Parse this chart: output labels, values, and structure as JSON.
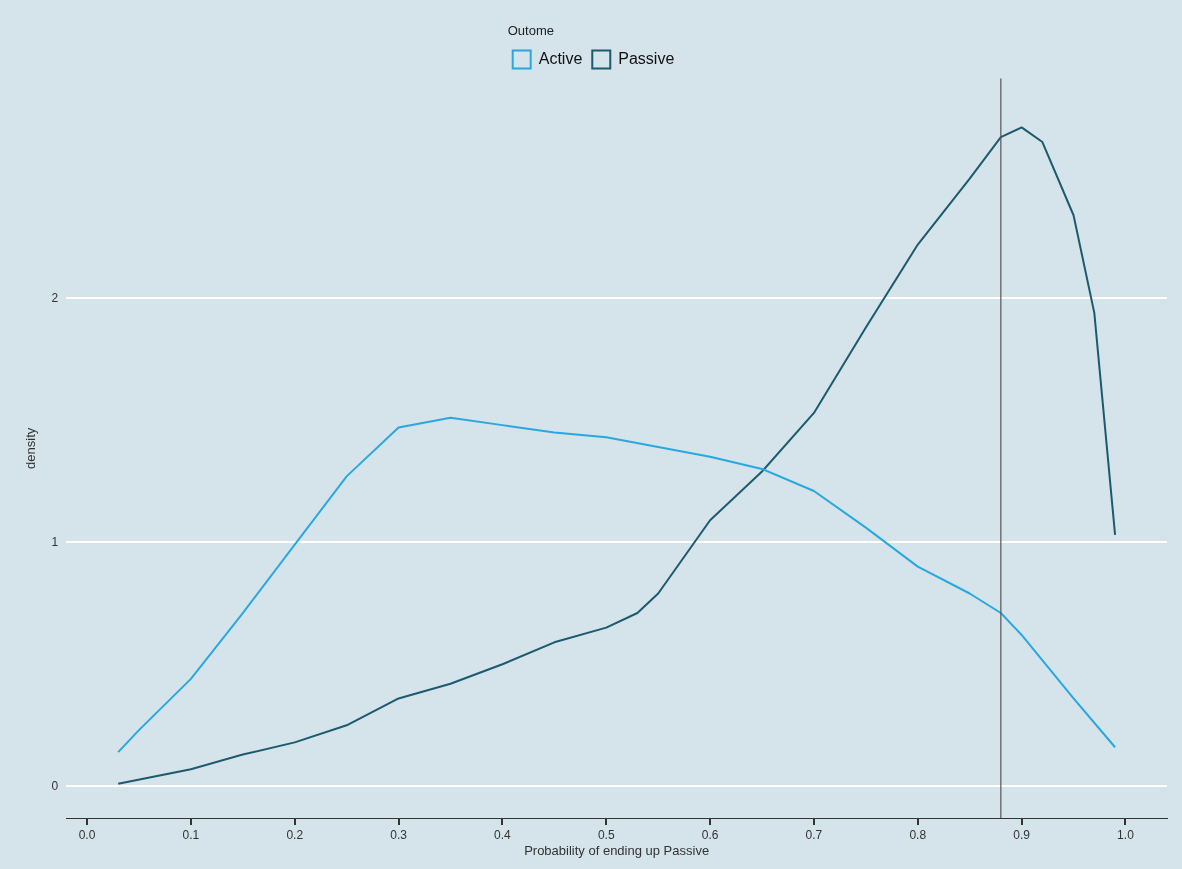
{
  "chart_data": {
    "type": "line",
    "xlabel": "Probability of ending up Passive",
    "ylabel": "density",
    "legend_title": "Outome",
    "legend": "top",
    "grid": "y",
    "marker": "none",
    "line_style": "solid",
    "xlim": [
      -0.02,
      1.04
    ],
    "ylim": [
      -0.13,
      2.9
    ],
    "xticks": [
      {
        "value": 0,
        "label": "0.0"
      },
      {
        "value": 0.1,
        "label": "0.1"
      },
      {
        "value": 0.2,
        "label": "0.2"
      },
      {
        "value": 0.3,
        "label": "0.3"
      },
      {
        "value": 0.4,
        "label": "0.4"
      },
      {
        "value": 0.5,
        "label": "0.5"
      },
      {
        "value": 0.6,
        "label": "0.6"
      },
      {
        "value": 0.7,
        "label": "0.7"
      },
      {
        "value": 0.8,
        "label": "0.8"
      },
      {
        "value": 0.9,
        "label": "0.9"
      },
      {
        "value": 1,
        "label": "1.0"
      }
    ],
    "yticks": [
      0,
      1,
      2
    ],
    "ref_lines": [
      {
        "axis": "x",
        "value": 0.88,
        "color": "#555555"
      }
    ],
    "series": [
      {
        "name": "Active",
        "color": "#29a8e0",
        "x": [
          0.03,
          0.05,
          0.1,
          0.15,
          0.2,
          0.25,
          0.3,
          0.35,
          0.4,
          0.45,
          0.5,
          0.55,
          0.6,
          0.65,
          0.7,
          0.75,
          0.8,
          0.85,
          0.88,
          0.9,
          0.95,
          0.99
        ],
        "values": [
          0.14,
          0.23,
          0.44,
          0.71,
          0.99,
          1.27,
          1.47,
          1.51,
          1.48,
          1.45,
          1.43,
          1.39,
          1.35,
          1.3,
          1.21,
          1.06,
          0.9,
          0.79,
          0.71,
          0.62,
          0.36,
          0.16
        ]
      },
      {
        "name": "Passive",
        "color": "#1c5a6e",
        "x": [
          0.03,
          0.1,
          0.15,
          0.2,
          0.25,
          0.3,
          0.35,
          0.4,
          0.45,
          0.5,
          0.53,
          0.55,
          0.6,
          0.65,
          0.7,
          0.75,
          0.8,
          0.85,
          0.88,
          0.9,
          0.92,
          0.95,
          0.97,
          0.99
        ],
        "values": [
          0.01,
          0.07,
          0.13,
          0.18,
          0.25,
          0.36,
          0.42,
          0.5,
          0.59,
          0.65,
          0.71,
          0.79,
          1.09,
          1.29,
          1.53,
          1.88,
          2.22,
          2.49,
          2.66,
          2.7,
          2.64,
          2.34,
          1.94,
          1.03
        ]
      }
    ]
  }
}
